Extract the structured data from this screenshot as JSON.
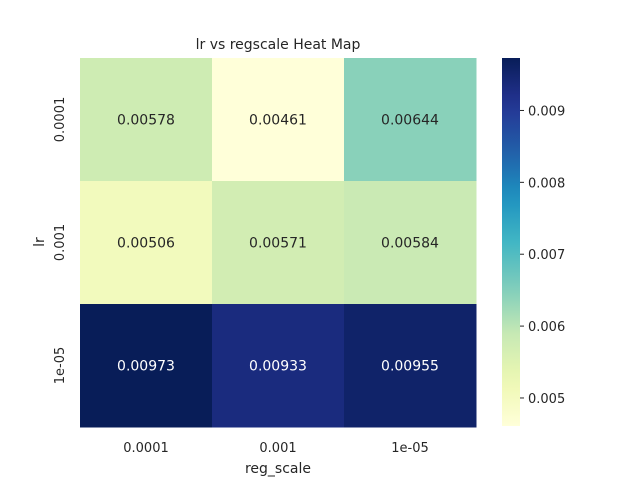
{
  "chart_data": {
    "type": "heatmap",
    "title": "lr vs regscale Heat Map",
    "xlabel": "reg_scale",
    "ylabel": "lr",
    "x_categories": [
      "0.0001",
      "0.001",
      "1e-05"
    ],
    "y_categories": [
      "0.0001",
      "0.001",
      "1e-05"
    ],
    "values": [
      [
        0.00578,
        0.00461,
        0.00644
      ],
      [
        0.00506,
        0.00571,
        0.00584
      ],
      [
        0.00973,
        0.00933,
        0.00955
      ]
    ],
    "cell_labels": [
      [
        "0.00578",
        "0.00461",
        "0.00644"
      ],
      [
        "0.00506",
        "0.00571",
        "0.00584"
      ],
      [
        "0.00973",
        "0.00933",
        "0.00955"
      ]
    ],
    "colormap": "YlGnBu",
    "vmin": 0.00461,
    "vmax": 0.00973,
    "colorbar_ticks": [
      "0.005",
      "0.006",
      "0.007",
      "0.008",
      "0.009"
    ],
    "grid": false
  }
}
